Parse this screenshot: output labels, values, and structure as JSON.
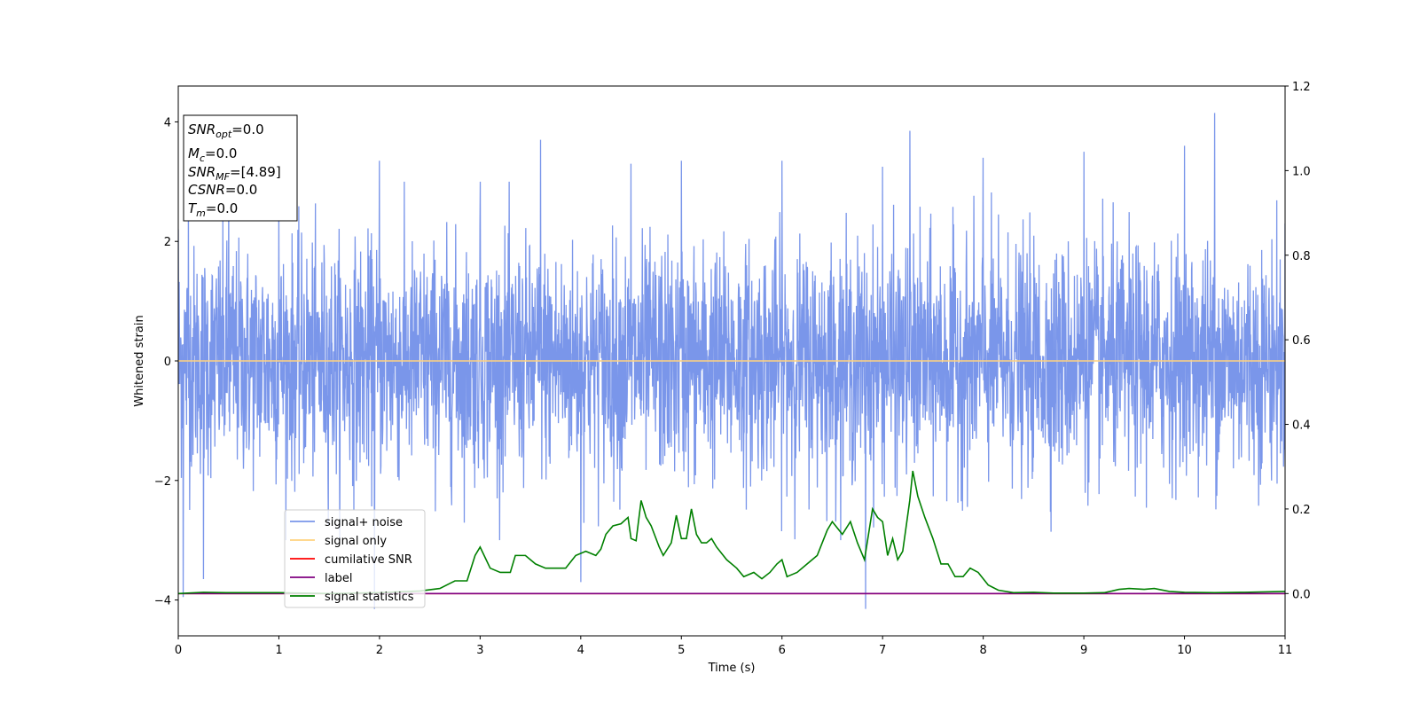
{
  "chart_data": {
    "type": "line",
    "xlabel": "Time (s)",
    "ylabel": "Whitened strain",
    "xlim": [
      0,
      11
    ],
    "ylim": [
      -4.6,
      4.6
    ],
    "y2lim": [
      -0.1,
      1.2
    ],
    "grid": false,
    "x_ticks": [
      "0",
      "1",
      "2",
      "3",
      "4",
      "5",
      "6",
      "7",
      "8",
      "9",
      "10",
      "11"
    ],
    "y_ticks": [
      "−4",
      "−2",
      "0",
      "2",
      "4"
    ],
    "y_ticks_values": [
      -4,
      -2,
      0,
      2,
      4
    ],
    "y2_ticks": [
      "0.0",
      "0.2",
      "0.4",
      "0.6",
      "0.8",
      "1.0",
      "1.2"
    ],
    "y2_ticks_values": [
      0.0,
      0.2,
      0.4,
      0.6,
      0.8,
      1.0,
      1.2
    ],
    "legend_position": "lower-left",
    "info_box": {
      "snr_opt": {
        "label": "SNR",
        "sub": "opt",
        "value": "=0.0"
      },
      "mc": {
        "label": "M",
        "sub": "c",
        "value": "=0.0"
      },
      "snr_mf": {
        "label": "SNR",
        "sub": "MF",
        "value": "=[4.89]"
      },
      "csnr": {
        "label": "CSNR",
        "sub": "",
        "value": "=0.0"
      },
      "tm": {
        "label": "T",
        "sub": "m",
        "value": "=0.0"
      }
    },
    "series": [
      {
        "name": "signal+ noise",
        "color": "#4169e1",
        "opacity": 0.7,
        "axis": "left",
        "description_points": "dense noise, mostly within ±2, peaks up to about 4.2 and down to about -4.1",
        "x": [
          0.0,
          0.05,
          0.1,
          0.25,
          0.5,
          1.0,
          1.95,
          2.0,
          3.0,
          3.6,
          4.0,
          4.5,
          5.0,
          6.0,
          6.83,
          7.0,
          7.27,
          8.0,
          9.0,
          10.0,
          10.3,
          11.0
        ],
        "y": [
          2.2,
          -3.95,
          2.8,
          -3.65,
          2.9,
          2.6,
          -4.15,
          3.35,
          3.0,
          3.7,
          -3.7,
          3.3,
          3.35,
          3.35,
          -4.15,
          3.25,
          3.85,
          3.4,
          3.5,
          3.6,
          4.15,
          2.3
        ]
      },
      {
        "name": "signal only",
        "color": "#ffd27f",
        "axis": "left",
        "x": [
          0,
          11
        ],
        "y": [
          0,
          0
        ]
      },
      {
        "name": "cumilative SNR",
        "color": "#ff0000",
        "axis": "right",
        "x": [
          0,
          11
        ],
        "y": [
          0,
          0
        ]
      },
      {
        "name": "label",
        "color": "#800080",
        "axis": "right",
        "x": [
          0,
          11
        ],
        "y": [
          0,
          0
        ]
      },
      {
        "name": "signal statistics",
        "color": "#008000",
        "axis": "right",
        "x": [
          0.0,
          0.25,
          0.5,
          1.0,
          1.5,
          2.0,
          2.4,
          2.6,
          2.75,
          2.87,
          2.95,
          3.0,
          3.1,
          3.2,
          3.3,
          3.35,
          3.45,
          3.55,
          3.65,
          3.75,
          3.8,
          3.85,
          3.95,
          4.05,
          4.15,
          4.2,
          4.25,
          4.32,
          4.4,
          4.47,
          4.5,
          4.55,
          4.6,
          4.65,
          4.7,
          4.78,
          4.82,
          4.9,
          4.95,
          5.0,
          5.05,
          5.1,
          5.15,
          5.2,
          5.25,
          5.3,
          5.35,
          5.45,
          5.55,
          5.62,
          5.72,
          5.8,
          5.88,
          5.95,
          6.0,
          6.05,
          6.15,
          6.25,
          6.35,
          6.45,
          6.5,
          6.6,
          6.68,
          6.75,
          6.82,
          6.9,
          6.95,
          7.0,
          7.05,
          7.1,
          7.15,
          7.2,
          7.27,
          7.3,
          7.35,
          7.42,
          7.5,
          7.58,
          7.65,
          7.72,
          7.8,
          7.87,
          7.95,
          8.05,
          8.15,
          8.3,
          8.5,
          8.7,
          9.0,
          9.2,
          9.28,
          9.35,
          9.45,
          9.6,
          9.7,
          9.85,
          10.0,
          10.3,
          10.6,
          11.0
        ],
        "y": [
          0.0,
          0.003,
          0.002,
          0.002,
          0.0,
          0.002,
          0.006,
          0.012,
          0.03,
          0.03,
          0.09,
          0.11,
          0.06,
          0.05,
          0.05,
          0.09,
          0.09,
          0.07,
          0.06,
          0.06,
          0.06,
          0.06,
          0.09,
          0.1,
          0.09,
          0.105,
          0.14,
          0.16,
          0.165,
          0.18,
          0.13,
          0.125,
          0.22,
          0.18,
          0.16,
          0.11,
          0.09,
          0.12,
          0.185,
          0.13,
          0.13,
          0.2,
          0.14,
          0.12,
          0.12,
          0.13,
          0.11,
          0.08,
          0.06,
          0.04,
          0.05,
          0.035,
          0.05,
          0.07,
          0.08,
          0.04,
          0.05,
          0.07,
          0.09,
          0.15,
          0.17,
          0.14,
          0.17,
          0.12,
          0.08,
          0.2,
          0.18,
          0.17,
          0.09,
          0.13,
          0.08,
          0.1,
          0.22,
          0.29,
          0.23,
          0.18,
          0.13,
          0.07,
          0.07,
          0.04,
          0.04,
          0.06,
          0.05,
          0.02,
          0.008,
          0.002,
          0.003,
          0.001,
          0.001,
          0.002,
          0.006,
          0.01,
          0.012,
          0.01,
          0.012,
          0.005,
          0.003,
          0.002,
          0.003,
          0.005
        ]
      }
    ]
  }
}
